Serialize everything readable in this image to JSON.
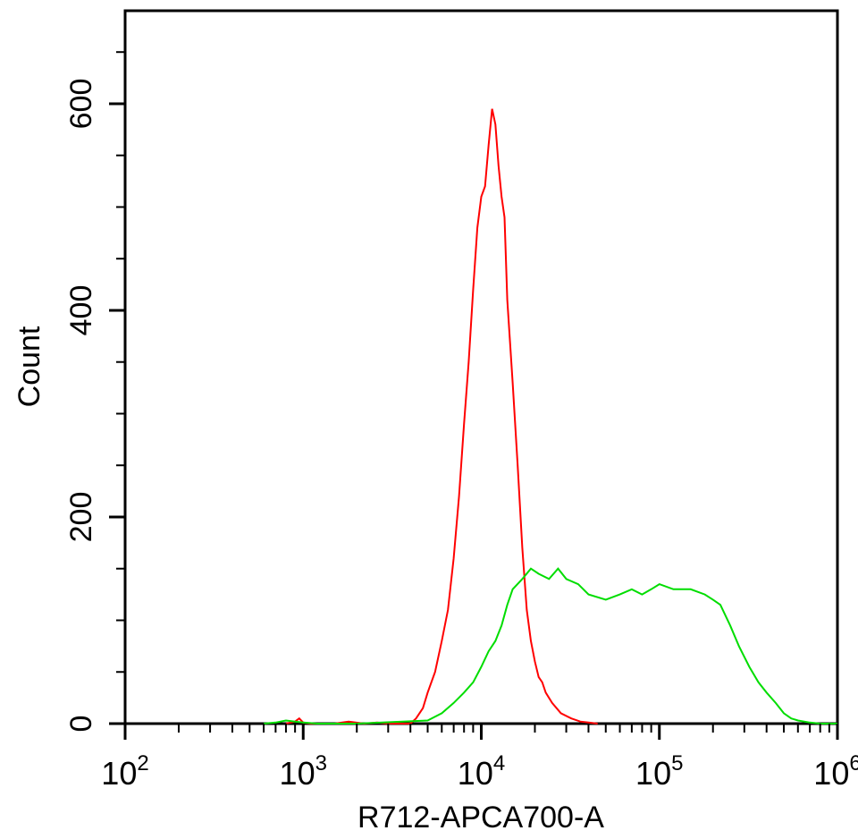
{
  "chart_data": {
    "type": "line",
    "xlabel": "R712-APCA700-A",
    "ylabel": "Count",
    "x_scale": "log",
    "xlim": [
      100,
      1000000
    ],
    "ylim": [
      0,
      690
    ],
    "x_ticks": [
      {
        "value": 100,
        "base": "10",
        "exp": "2"
      },
      {
        "value": 1000,
        "base": "10",
        "exp": "3"
      },
      {
        "value": 10000,
        "base": "10",
        "exp": "4"
      },
      {
        "value": 100000,
        "base": "10",
        "exp": "5"
      },
      {
        "value": 1000000,
        "base": "10",
        "exp": "6"
      }
    ],
    "y_ticks": [
      "0",
      "200",
      "400",
      "600"
    ],
    "grid": false,
    "series": [
      {
        "color": "#ff0000",
        "x": [
          800,
          900,
          950,
          1000,
          1100,
          1500,
          1800,
          2200,
          2600,
          3000,
          3500,
          4000,
          4300,
          4700,
          5000,
          5500,
          6000,
          6500,
          7000,
          7500,
          8000,
          8500,
          9000,
          9500,
          10000,
          10500,
          11000,
          11500,
          12000,
          12500,
          13000,
          13500,
          14000,
          15000,
          16000,
          17000,
          18000,
          19000,
          20000,
          21000,
          22000,
          23000,
          25000,
          28000,
          32000,
          36000,
          40000,
          45000
        ],
        "y": [
          0,
          2,
          5,
          1,
          0,
          0,
          2,
          0,
          1,
          0,
          0,
          0,
          5,
          15,
          30,
          50,
          80,
          110,
          160,
          220,
          290,
          350,
          420,
          480,
          510,
          520,
          560,
          595,
          580,
          540,
          510,
          490,
          410,
          330,
          250,
          170,
          110,
          80,
          60,
          45,
          40,
          30,
          20,
          10,
          5,
          2,
          1,
          0
        ]
      },
      {
        "color": "#00dd00",
        "x": [
          600,
          700,
          800,
          900,
          1000,
          1200,
          2000,
          5000,
          6000,
          7000,
          8000,
          9000,
          10000,
          11000,
          12000,
          13000,
          14000,
          15000,
          17000,
          19000,
          21000,
          24000,
          27000,
          30000,
          35000,
          40000,
          50000,
          60000,
          70000,
          80000,
          90000,
          100000,
          120000,
          150000,
          180000,
          200000,
          220000,
          250000,
          280000,
          320000,
          360000,
          400000,
          450000,
          500000,
          550000,
          600000,
          700000,
          800000,
          900000,
          1000000
        ],
        "y": [
          0,
          1,
          3,
          2,
          1,
          0,
          0,
          3,
          10,
          20,
          30,
          40,
          55,
          70,
          80,
          95,
          115,
          130,
          140,
          150,
          145,
          140,
          150,
          140,
          135,
          125,
          120,
          125,
          130,
          125,
          130,
          135,
          130,
          130,
          125,
          120,
          115,
          95,
          75,
          55,
          40,
          30,
          20,
          10,
          5,
          3,
          1,
          0,
          0,
          0
        ]
      }
    ]
  }
}
